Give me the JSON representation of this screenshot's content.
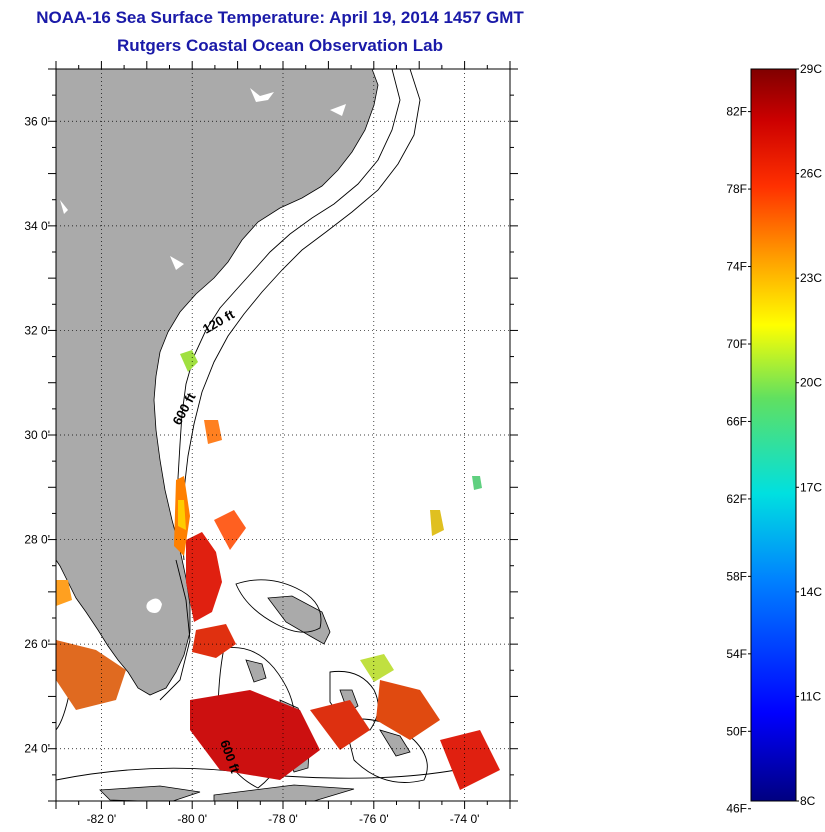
{
  "title": "NOAA-16 Sea Surface Temperature:  April 19, 2014 1457 GMT",
  "subtitle": "Rutgers Coastal Ocean Observation Lab",
  "map": {
    "lon_range": [
      -83,
      -73
    ],
    "lat_range": [
      23,
      37
    ],
    "lat_ticks": [
      {
        "value": 24,
        "label": "24 0'"
      },
      {
        "value": 26,
        "label": "26 0'"
      },
      {
        "value": 28,
        "label": "28 0'"
      },
      {
        "value": 30,
        "label": "30 0'"
      },
      {
        "value": 32,
        "label": "32 0'"
      },
      {
        "value": 34,
        "label": "34 0'"
      },
      {
        "value": 36,
        "label": "36 0'"
      }
    ],
    "lon_ticks": [
      {
        "value": -82,
        "label": "-82 0'"
      },
      {
        "value": -80,
        "label": "-80 0'"
      },
      {
        "value": -78,
        "label": "-78 0'"
      },
      {
        "value": -76,
        "label": "-76 0'"
      },
      {
        "value": -74,
        "label": "-74 0'"
      }
    ],
    "contour_labels": [
      "120 ft",
      "600 ft",
      "600 ft"
    ],
    "land_color": "#aaaaaa",
    "grid": true
  },
  "colorbar": {
    "min_c": 8,
    "max_c": 29,
    "celsius_labels": [
      "29C",
      "26C",
      "23C",
      "20C",
      "17C",
      "14C",
      "11C",
      "8C"
    ],
    "fahrenheit_labels": [
      "82F",
      "78F",
      "74F",
      "70F",
      "66F",
      "62F",
      "58F",
      "54F",
      "50F",
      "46F"
    ]
  }
}
